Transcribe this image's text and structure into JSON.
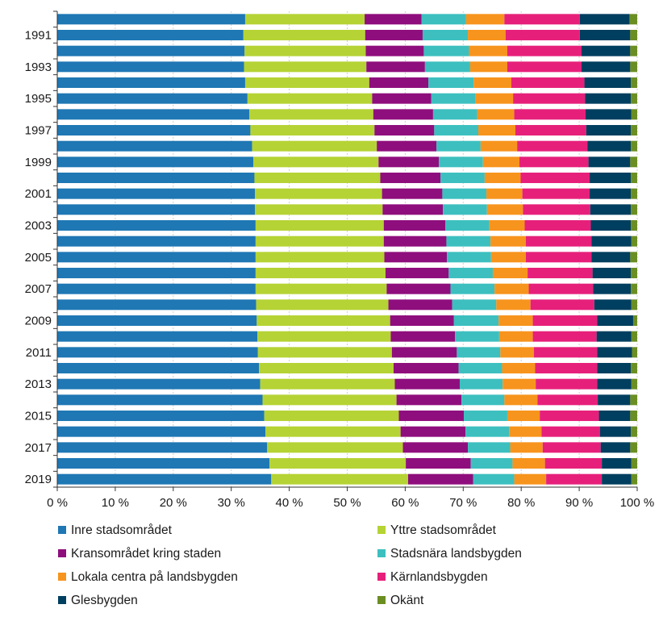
{
  "chart_data": {
    "type": "bar",
    "orientation": "horizontal",
    "stacked": "percent",
    "title": "",
    "xlabel": "",
    "ylabel": "",
    "xlim": [
      0,
      100
    ],
    "x_ticks": [
      "0 %",
      "10 %",
      "20 %",
      "30 %",
      "40 %",
      "50 %",
      "60 %",
      "70 %",
      "80 %",
      "90 %",
      "100 %"
    ],
    "grid": "vertical gridlines",
    "legend_position": "bottom",
    "categories": [
      "1990",
      "1991",
      "1992",
      "1993",
      "1994",
      "1995",
      "1996",
      "1997",
      "1998",
      "1999",
      "2000",
      "2001",
      "2002",
      "2003",
      "2004",
      "2005",
      "2006",
      "2007",
      "2008",
      "2009",
      "2010",
      "2011",
      "2012",
      "2013",
      "2014",
      "2015",
      "2016",
      "2017",
      "2018",
      "2019"
    ],
    "y_tick_labels": [
      "1991",
      "1993",
      "1995",
      "1997",
      "1999",
      "2001",
      "2003",
      "2005",
      "2007",
      "2009",
      "2011",
      "2013",
      "2015",
      "2017",
      "2019"
    ],
    "series": [
      {
        "name": "Inre stadsområdet",
        "color": "#1f77b4",
        "values": [
          32.4,
          32.1,
          32.3,
          32.2,
          32.4,
          32.8,
          33.1,
          33.3,
          33.6,
          33.8,
          34.0,
          34.1,
          34.1,
          34.2,
          34.2,
          34.2,
          34.2,
          34.2,
          34.3,
          34.4,
          34.5,
          34.6,
          34.8,
          35.0,
          35.4,
          35.7,
          35.9,
          36.2,
          36.6,
          36.9
        ]
      },
      {
        "name": "Yttre stadsområdet",
        "color": "#b5d334",
        "values": [
          20.6,
          21.0,
          20.9,
          21.1,
          21.4,
          21.5,
          21.4,
          21.4,
          21.5,
          21.6,
          21.7,
          21.9,
          22.0,
          22.1,
          22.1,
          22.2,
          22.4,
          22.6,
          22.8,
          23.0,
          23.0,
          23.1,
          23.2,
          23.2,
          23.1,
          23.2,
          23.3,
          23.4,
          23.5,
          23.6
        ]
      },
      {
        "name": "Kransområdet kring staden",
        "color": "#8f0e7d",
        "values": [
          9.8,
          9.9,
          10.0,
          10.1,
          10.2,
          10.2,
          10.3,
          10.3,
          10.3,
          10.4,
          10.4,
          10.4,
          10.4,
          10.6,
          10.8,
          10.8,
          10.9,
          11.0,
          11.0,
          11.0,
          11.1,
          11.2,
          11.2,
          11.2,
          11.2,
          11.2,
          11.2,
          11.2,
          11.2,
          11.2
        ]
      },
      {
        "name": "Stadsnära landsbygden",
        "color": "#3dbfbf",
        "values": [
          7.7,
          7.8,
          7.8,
          7.8,
          7.8,
          7.6,
          7.6,
          7.6,
          7.6,
          7.6,
          7.6,
          7.6,
          7.6,
          7.6,
          7.6,
          7.6,
          7.6,
          7.6,
          7.6,
          7.7,
          7.6,
          7.5,
          7.5,
          7.4,
          7.4,
          7.5,
          7.5,
          7.3,
          7.2,
          7.1
        ]
      },
      {
        "name": "Lokala centra på landsbygden",
        "color": "#f7941d",
        "values": [
          6.6,
          6.5,
          6.6,
          6.4,
          6.5,
          6.5,
          6.4,
          6.4,
          6.3,
          6.3,
          6.2,
          6.2,
          6.2,
          6.1,
          6.1,
          6.0,
          6.0,
          5.9,
          5.9,
          5.9,
          5.8,
          5.8,
          5.7,
          5.7,
          5.7,
          5.6,
          5.6,
          5.6,
          5.6,
          5.5
        ]
      },
      {
        "name": "Kärnlandsbygden",
        "color": "#e6207a",
        "values": [
          13.0,
          12.8,
          12.8,
          12.8,
          12.6,
          12.4,
          12.3,
          12.2,
          12.1,
          11.9,
          11.9,
          11.6,
          11.6,
          11.4,
          11.3,
          11.3,
          11.2,
          11.1,
          11.0,
          11.1,
          11.0,
          10.9,
          10.7,
          10.6,
          10.4,
          10.2,
          10.1,
          10.0,
          9.8,
          9.6
        ]
      },
      {
        "name": "Glesbygden",
        "color": "#003f5f",
        "values": [
          8.6,
          8.7,
          8.4,
          8.4,
          8.0,
          7.9,
          7.9,
          7.7,
          7.5,
          7.2,
          7.1,
          7.1,
          7.0,
          6.9,
          6.9,
          6.7,
          6.6,
          6.5,
          6.4,
          6.2,
          6.0,
          6.0,
          5.8,
          5.9,
          5.6,
          5.4,
          5.3,
          5.1,
          5.1,
          5.1
        ]
      },
      {
        "name": "Okänt",
        "color": "#6b8e23",
        "values": [
          1.3,
          1.2,
          1.2,
          1.2,
          1.1,
          1.1,
          1.0,
          1.1,
          1.1,
          1.2,
          1.1,
          1.1,
          1.1,
          1.1,
          1.0,
          1.2,
          1.1,
          1.1,
          1.0,
          0.7,
          1.0,
          0.9,
          1.1,
          1.0,
          1.2,
          1.2,
          1.1,
          1.2,
          1.0,
          1.0
        ]
      }
    ]
  }
}
